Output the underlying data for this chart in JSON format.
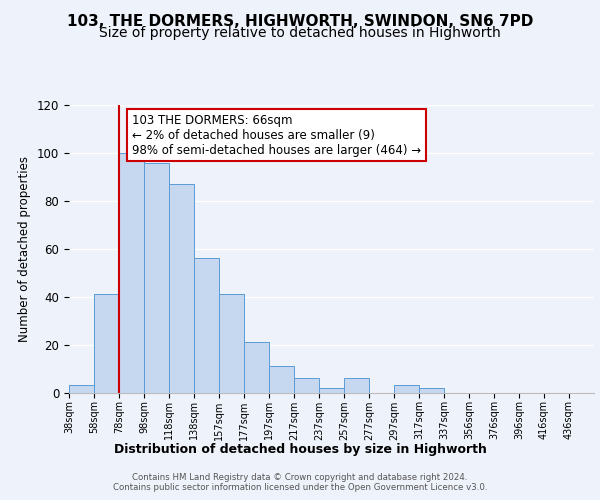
{
  "title": "103, THE DORMERS, HIGHWORTH, SWINDON, SN6 7PD",
  "subtitle": "Size of property relative to detached houses in Highworth",
  "xlabel": "Distribution of detached houses by size in Highworth",
  "ylabel": "Number of detached properties",
  "bar_labels": [
    "38sqm",
    "58sqm",
    "78sqm",
    "98sqm",
    "118sqm",
    "138sqm",
    "157sqm",
    "177sqm",
    "197sqm",
    "217sqm",
    "237sqm",
    "257sqm",
    "277sqm",
    "297sqm",
    "317sqm",
    "337sqm",
    "356sqm",
    "376sqm",
    "396sqm",
    "416sqm",
    "436sqm"
  ],
  "bar_values": [
    3,
    41,
    100,
    96,
    87,
    56,
    41,
    21,
    11,
    6,
    2,
    6,
    0,
    3,
    2,
    0,
    0,
    0,
    0,
    0,
    0
  ],
  "bar_color": "#c5d8f0",
  "bar_edge_color": "#5b9bd5",
  "annotation_line1": "103 THE DORMERS: 66sqm",
  "annotation_line2": "← 2% of detached houses are smaller (9)",
  "annotation_line3": "98% of semi-detached houses are larger (464) →",
  "annotation_box_edge_color": "#cc0000",
  "annotation_box_face_color": "#ffffff",
  "vline_color": "#cc0000",
  "ylim": [
    0,
    120
  ],
  "yticks": [
    0,
    20,
    40,
    60,
    80,
    100,
    120
  ],
  "background_color": "#eef2fa",
  "grid_color": "#ffffff",
  "footer_text": "Contains HM Land Registry data © Crown copyright and database right 2024.\nContains public sector information licensed under the Open Government Licence v3.0.",
  "title_fontsize": 11,
  "subtitle_fontsize": 10,
  "xlabel_fontsize": 9,
  "ylabel_fontsize": 8.5
}
